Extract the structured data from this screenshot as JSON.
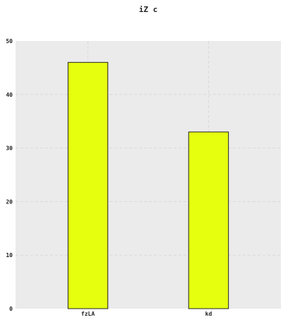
{
  "chart_data": {
    "type": "bar",
    "title": "iZ  c",
    "xlabel": "",
    "ylabel": "",
    "categories": [
      "fzLA",
      "kd"
    ],
    "values": [
      46,
      33
    ],
    "ylim": [
      0,
      50
    ],
    "yticks": [
      0,
      10,
      20,
      30,
      40,
      50
    ],
    "grid": true,
    "legend": "none",
    "colors": {
      "bar_fill": "#e5ff0f",
      "bar_edge": "#222222",
      "plot_background": "#ebebeb",
      "grid": "#d9d9d9"
    }
  }
}
